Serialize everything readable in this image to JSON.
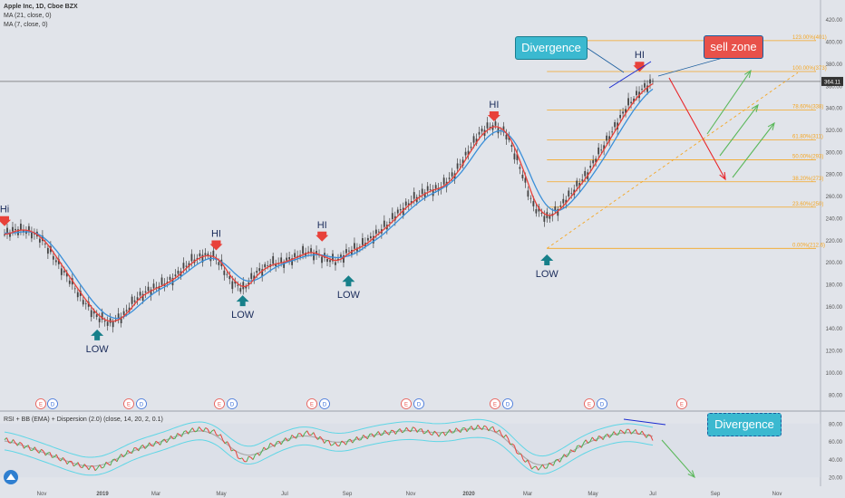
{
  "header": {
    "symbol_line": "Apple Inc, 1D, Cboe BZX",
    "ma21": "MA (21, close, 0)",
    "ma7": "MA (7, close, 0)"
  },
  "rsi_panel": {
    "label": "RSI + BB (EMA) + Dispersion (2.0) (close, 14, 20, 2, 0.1)"
  },
  "annotations": {
    "divergence_top": "Divergence",
    "sell_zone": "sell zone",
    "divergence_rsi": "Divergence"
  },
  "colors": {
    "background": "#e1e4ea",
    "candle": "#444444",
    "ma7": "#e8413a",
    "ma21": "#3a8fd9",
    "fib": "#f5a623",
    "hi_arrow": "#e8413a",
    "low_arrow": "#17808a",
    "divergence_box": "#3bb9d0",
    "sell_box": "#e8514a",
    "rsi_green": "#4caf50",
    "rsi_red": "#e8413a",
    "bb_band": "#5fd6e6",
    "projection_green": "#5cb85c",
    "projection_red": "#e8262a"
  },
  "chart_data": [
    {
      "type": "line",
      "title": "",
      "x_ticks": [
        "Nov",
        "2019",
        "Mar",
        "May",
        "Jul",
        "Sep",
        "Nov",
        "2020",
        "Mar",
        "May",
        "Jul",
        "Sep",
        "Nov"
      ],
      "y_ticks": [
        80,
        100,
        120,
        140,
        160,
        180,
        200,
        220,
        240,
        260,
        280,
        300,
        320,
        340,
        360,
        380,
        400,
        420
      ],
      "ylim": [
        70,
        428
      ],
      "current_price_label": "364.11",
      "series": [
        {
          "values": [
            225,
            230,
            228,
            218,
            200,
            182,
            165,
            150,
            145,
            152,
            168,
            175,
            180,
            188,
            200,
            207,
            204,
            185,
            175,
            190,
            198,
            200,
            205,
            210,
            205,
            200,
            210,
            215,
            225,
            235,
            248,
            258,
            265,
            268,
            280,
            300,
            318,
            325,
            315,
            285,
            250,
            240,
            250,
            265,
            280,
            300,
            320,
            340,
            355,
            364
          ]
        }
      ],
      "swing_labels": [
        {
          "text": "Hi",
          "kind": "high",
          "i": 0,
          "v": 232
        },
        {
          "text": "LOW",
          "kind": "low",
          "i": 7,
          "v": 144
        },
        {
          "text": "HI",
          "kind": "high",
          "i": 16,
          "v": 210
        },
        {
          "text": "LOW",
          "kind": "low",
          "i": 18,
          "v": 175
        },
        {
          "text": "HI",
          "kind": "high",
          "i": 24,
          "v": 218
        },
        {
          "text": "LOW",
          "kind": "low",
          "i": 26,
          "v": 193
        },
        {
          "text": "HI",
          "kind": "high",
          "i": 37,
          "v": 327
        },
        {
          "text": "LOW",
          "kind": "low",
          "i": 41,
          "v": 212
        },
        {
          "text": "HI",
          "kind": "high",
          "i": 48,
          "v": 372
        }
      ],
      "fib_levels": [
        {
          "label": "123.00%(401)",
          "value": 401
        },
        {
          "label": "100.00%(373)",
          "value": 373
        },
        {
          "label": "78.60%(338)",
          "value": 338
        },
        {
          "label": "61.80%(311)",
          "value": 311
        },
        {
          "label": "50.00%(293)",
          "value": 293
        },
        {
          "label": "38.20%(273)",
          "value": 273
        },
        {
          "label": "23.60%(250)",
          "value": 250
        },
        {
          "label": "0.00%(212.6)",
          "value": 212.6
        }
      ],
      "earnings_markers": [
        "E",
        "D",
        "E",
        "D",
        "E",
        "D",
        "E",
        "D",
        "E",
        "D",
        "E",
        "D",
        "E",
        "D",
        "E"
      ]
    },
    {
      "type": "line",
      "title": "",
      "y_ticks": [
        20,
        40,
        60,
        80
      ],
      "ylim": [
        12,
        90
      ],
      "series": [
        {
          "values": [
            62,
            58,
            52,
            48,
            42,
            36,
            32,
            30,
            36,
            45,
            52,
            56,
            60,
            66,
            72,
            74,
            70,
            55,
            38,
            44,
            55,
            60,
            66,
            70,
            62,
            56,
            60,
            64,
            68,
            70,
            72,
            74,
            70,
            68,
            72,
            74,
            76,
            74,
            64,
            44,
            30,
            32,
            40,
            50,
            60,
            64,
            68,
            72,
            70,
            64
          ]
        }
      ]
    }
  ]
}
